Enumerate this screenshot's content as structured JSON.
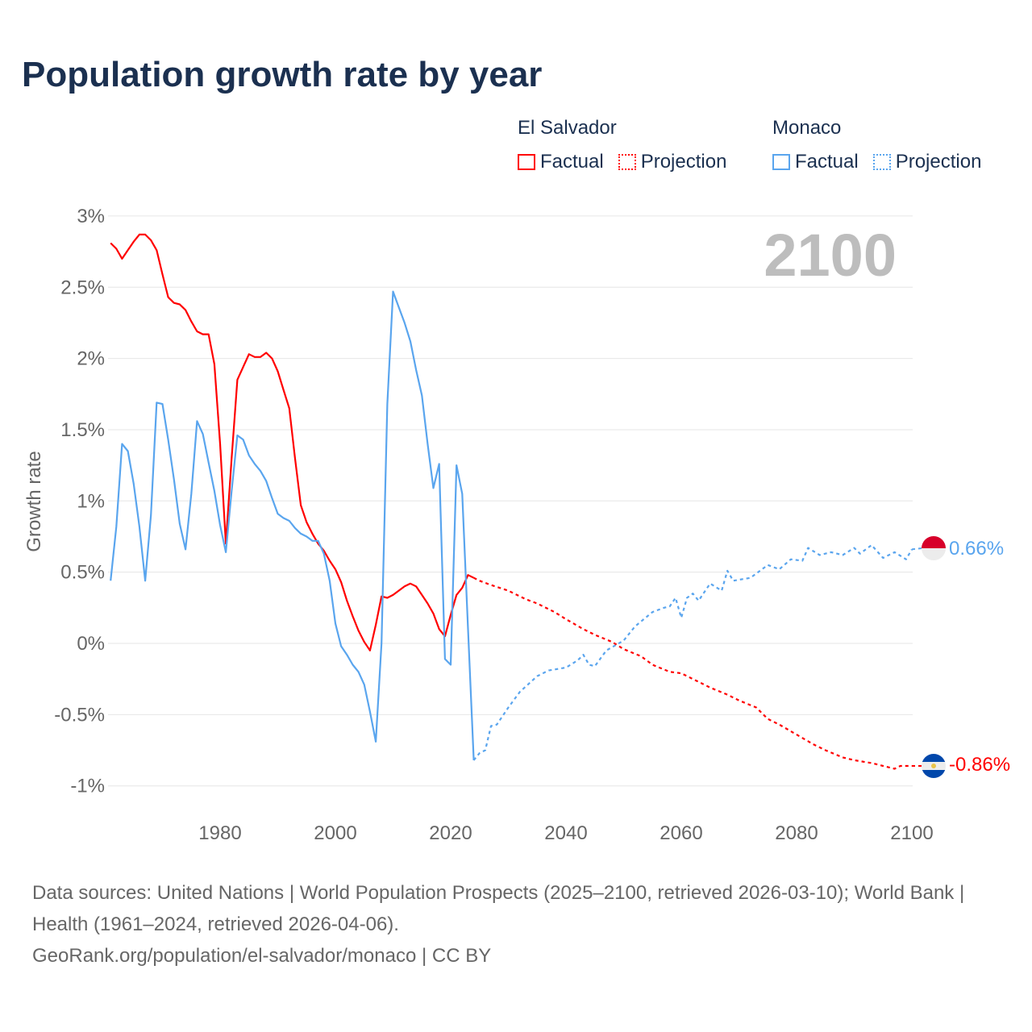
{
  "title": "Population growth rate by year",
  "legend": {
    "groups": [
      {
        "name": "El Salvador",
        "factual": "Factual",
        "projection": "Projection",
        "color": "#ff0000"
      },
      {
        "name": "Monaco",
        "factual": "Factual",
        "projection": "Projection",
        "color": "#5aa5ee"
      }
    ]
  },
  "year_display": "2100",
  "end_labels": {
    "monaco": "0.66%",
    "el_salvador": "-0.86%"
  },
  "footer": {
    "line1": "Data sources: United Nations | World Population Prospects (2025–2100, retrieved 2026-03-10); World Bank | Health (1961–2024, retrieved 2026-04-06).",
    "line2": "GeoRank.org/population/el-salvador/monaco | CC BY"
  },
  "chart_data": {
    "type": "line",
    "title": "Population growth rate by year",
    "xlabel": "",
    "ylabel": "Growth rate",
    "xlim": [
      1961,
      2100
    ],
    "ylim": [
      -1.1,
      3.0
    ],
    "yticks": [
      3,
      2.5,
      2,
      1.5,
      1,
      0.5,
      0,
      -0.5,
      -1
    ],
    "ytick_labels": [
      "3%",
      "2.5%",
      "2%",
      "1.5%",
      "1%",
      "0.5%",
      "0%",
      "-0.5%",
      "-1%"
    ],
    "xticks": [
      1980,
      2000,
      2020,
      2040,
      2060,
      2080,
      2100
    ],
    "xtick_labels": [
      "1980",
      "2000",
      "2020",
      "2040",
      "2060",
      "2080",
      "2100"
    ],
    "grid": true,
    "series": [
      {
        "name": "El Salvador Factual",
        "color": "#ff0000",
        "style": "solid",
        "x": [
          1961,
          1962,
          1963,
          1964,
          1965,
          1966,
          1967,
          1968,
          1969,
          1970,
          1971,
          1972,
          1973,
          1974,
          1975,
          1976,
          1977,
          1978,
          1979,
          1980,
          1981,
          1982,
          1983,
          1984,
          1985,
          1986,
          1987,
          1988,
          1989,
          1990,
          1991,
          1992,
          1993,
          1994,
          1995,
          1996,
          1997,
          1998,
          1999,
          2000,
          2001,
          2002,
          2003,
          2004,
          2005,
          2006,
          2007,
          2008,
          2009,
          2010,
          2011,
          2012,
          2013,
          2014,
          2015,
          2016,
          2017,
          2018,
          2019,
          2020,
          2021,
          2022,
          2023,
          2024
        ],
        "values": [
          2.81,
          2.77,
          2.7,
          2.76,
          2.82,
          2.87,
          2.87,
          2.83,
          2.76,
          2.59,
          2.43,
          2.39,
          2.38,
          2.34,
          2.26,
          2.19,
          2.17,
          2.17,
          1.96,
          1.4,
          0.7,
          1.3,
          1.85,
          1.94,
          2.03,
          2.01,
          2.01,
          2.04,
          2.0,
          1.91,
          1.78,
          1.65,
          1.3,
          0.97,
          0.85,
          0.77,
          0.7,
          0.65,
          0.58,
          0.52,
          0.43,
          0.3,
          0.19,
          0.09,
          0.01,
          -0.05,
          0.13,
          0.33,
          0.32,
          0.34,
          0.37,
          0.4,
          0.42,
          0.4,
          0.34,
          0.28,
          0.21,
          0.1,
          0.05,
          0.2,
          0.34,
          0.39,
          0.48,
          0.46
        ]
      },
      {
        "name": "El Salvador Projection",
        "color": "#ff0000",
        "style": "dotted",
        "x": [
          2024,
          2025,
          2027,
          2030,
          2033,
          2035,
          2038,
          2040,
          2043,
          2045,
          2048,
          2050,
          2053,
          2055,
          2058,
          2060,
          2063,
          2065,
          2068,
          2070,
          2073,
          2075,
          2077,
          2080,
          2083,
          2085,
          2088,
          2090,
          2093,
          2095,
          2097,
          2098,
          2100
        ],
        "values": [
          0.46,
          0.44,
          0.41,
          0.37,
          0.31,
          0.28,
          0.22,
          0.17,
          0.1,
          0.06,
          0.01,
          -0.04,
          -0.09,
          -0.15,
          -0.2,
          -0.21,
          -0.27,
          -0.31,
          -0.36,
          -0.4,
          -0.45,
          -0.53,
          -0.57,
          -0.64,
          -0.71,
          -0.75,
          -0.8,
          -0.82,
          -0.84,
          -0.86,
          -0.88,
          -0.86,
          -0.86
        ]
      },
      {
        "name": "Monaco Factual",
        "color": "#5aa5ee",
        "style": "solid",
        "x": [
          1961,
          1962,
          1963,
          1964,
          1965,
          1966,
          1967,
          1968,
          1969,
          1970,
          1971,
          1972,
          1973,
          1974,
          1975,
          1976,
          1977,
          1978,
          1979,
          1980,
          1981,
          1982,
          1983,
          1984,
          1985,
          1986,
          1987,
          1988,
          1989,
          1990,
          1991,
          1992,
          1993,
          1994,
          1995,
          1996,
          1997,
          1998,
          1999,
          2000,
          2001,
          2002,
          2003,
          2004,
          2005,
          2006,
          2007,
          2008,
          2009,
          2010,
          2011,
          2012,
          2013,
          2014,
          2015,
          2016,
          2017,
          2018,
          2019,
          2020,
          2021,
          2022,
          2023,
          2024
        ],
        "values": [
          0.44,
          0.82,
          1.4,
          1.35,
          1.12,
          0.82,
          0.44,
          0.9,
          1.69,
          1.68,
          1.43,
          1.15,
          0.84,
          0.66,
          1.05,
          1.56,
          1.47,
          1.27,
          1.07,
          0.83,
          0.64,
          1.07,
          1.46,
          1.43,
          1.32,
          1.26,
          1.21,
          1.14,
          1.02,
          0.91,
          0.88,
          0.86,
          0.81,
          0.77,
          0.75,
          0.72,
          0.72,
          0.63,
          0.44,
          0.14,
          -0.02,
          -0.08,
          -0.15,
          -0.2,
          -0.29,
          -0.48,
          -0.69,
          0.0,
          1.68,
          2.47,
          2.36,
          2.25,
          2.12,
          1.92,
          1.74,
          1.4,
          1.09,
          1.26,
          -0.11,
          -0.15,
          1.25,
          1.05,
          0.1,
          -0.82
        ]
      },
      {
        "name": "Monaco Projection",
        "color": "#5aa5ee",
        "style": "dotted",
        "x": [
          2024,
          2025,
          2026,
          2027,
          2028,
          2030,
          2032,
          2035,
          2037,
          2040,
          2042,
          2043,
          2044,
          2045,
          2047,
          2050,
          2052,
          2055,
          2057,
          2058,
          2059,
          2060,
          2061,
          2062,
          2063,
          2064,
          2065,
          2067,
          2068,
          2069,
          2072,
          2075,
          2077,
          2079,
          2081,
          2082,
          2084,
          2086,
          2088,
          2090,
          2091,
          2093,
          2095,
          2097,
          2099,
          2100
        ],
        "values": [
          -0.82,
          -0.77,
          -0.75,
          -0.58,
          -0.57,
          -0.45,
          -0.34,
          -0.23,
          -0.19,
          -0.17,
          -0.12,
          -0.08,
          -0.15,
          -0.16,
          -0.05,
          0.02,
          0.12,
          0.22,
          0.25,
          0.26,
          0.32,
          0.18,
          0.32,
          0.35,
          0.3,
          0.36,
          0.42,
          0.37,
          0.51,
          0.44,
          0.46,
          0.55,
          0.52,
          0.59,
          0.58,
          0.67,
          0.62,
          0.64,
          0.62,
          0.67,
          0.63,
          0.69,
          0.6,
          0.64,
          0.59,
          0.66
        ]
      }
    ]
  }
}
